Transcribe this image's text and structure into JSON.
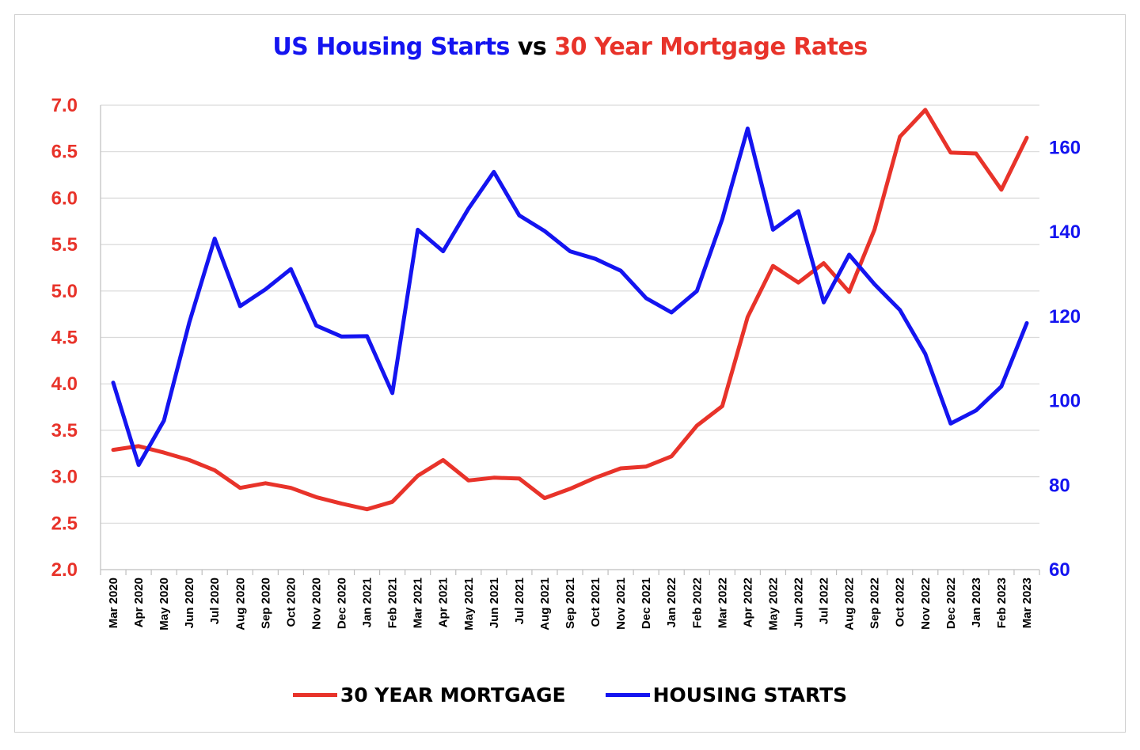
{
  "title": {
    "part1": "US Housing Starts",
    "part2": " vs ",
    "part3": "30 Year Mortgage Rates"
  },
  "colors": {
    "mortgage": "#e8332a",
    "housing": "#1414f0",
    "grid": "#d9d9d9",
    "axis": "#bfbfbf",
    "title_mid": "#000000"
  },
  "chart_data": {
    "type": "line",
    "categories": [
      "Mar 2020",
      "Apr 2020",
      "May 2020",
      "Jun 2020",
      "Jul 2020",
      "Aug 2020",
      "Sep 2020",
      "Oct 2020",
      "Nov 2020",
      "Dec 2020",
      "Jan 2021",
      "Feb 2021",
      "Mar 2021",
      "Apr 2021",
      "May 2021",
      "Jun 2021",
      "Jul 2021",
      "Aug 2021",
      "Sep 2021",
      "Oct 2021",
      "Nov 2021",
      "Dec 2021",
      "Jan 2022",
      "Feb 2022",
      "Mar 2022",
      "Apr 2022",
      "May 2022",
      "Jun 2022",
      "Jul 2022",
      "Aug 2022",
      "Sep 2022",
      "Oct 2022",
      "Nov 2022",
      "Dec 2022",
      "Jan 2023",
      "Feb 2023",
      "Mar 2023"
    ],
    "series": [
      {
        "name": "30 YEAR MORTGAGE",
        "axis": "left",
        "color": "#e8332a",
        "values": [
          3.29,
          3.33,
          3.26,
          3.18,
          3.07,
          2.88,
          2.93,
          2.88,
          2.78,
          2.71,
          2.65,
          2.73,
          3.01,
          3.18,
          2.96,
          2.99,
          2.98,
          2.77,
          2.87,
          2.99,
          3.09,
          3.11,
          3.22,
          3.55,
          3.76,
          4.72,
          5.27,
          5.09,
          5.3,
          4.99,
          5.66,
          6.66,
          6.95,
          6.49,
          6.48,
          6.09,
          6.65
        ]
      },
      {
        "name": "HOUSING STARTS",
        "axis": "right",
        "color": "#1414f0",
        "values": [
          104.3,
          84.8,
          95.3,
          118.6,
          138.4,
          122.4,
          126.4,
          131.2,
          117.8,
          115.2,
          115.3,
          101.8,
          140.5,
          135.4,
          145.5,
          154.2,
          143.9,
          140.2,
          135.4,
          133.6,
          130.8,
          124.3,
          120.9,
          126.0,
          143.0,
          164.5,
          140.5,
          144.9,
          123.3,
          134.6,
          127.6,
          121.5,
          111.1,
          94.6,
          97.7,
          103.4,
          118.4
        ]
      }
    ],
    "y_left": {
      "min": 2.0,
      "max": 7.0,
      "ticks": [
        "2.0",
        "2.5",
        "3.0",
        "3.5",
        "4.0",
        "4.5",
        "5.0",
        "5.5",
        "6.0",
        "6.5",
        "7.0"
      ]
    },
    "y_right": {
      "min": 60,
      "max": 170,
      "ticks": [
        "60",
        "80",
        "100",
        "120",
        "140",
        "160"
      ]
    },
    "grid": true,
    "legend": "bottom"
  },
  "legend": {
    "mortgage_label": "30 YEAR MORTGAGE",
    "housing_label": "HOUSING STARTS"
  }
}
